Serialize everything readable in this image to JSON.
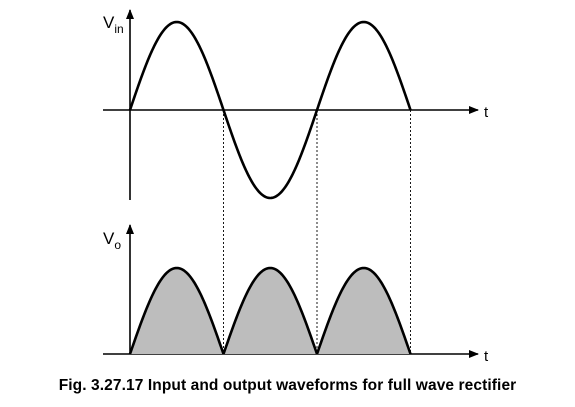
{
  "input_plot": {
    "y_label_main": "V",
    "y_label_sub": "in",
    "x_label": "t",
    "waveform": "sine",
    "cycles": 1.5
  },
  "output_plot": {
    "y_label_main": "V",
    "y_label_sub": "o",
    "x_label": "t",
    "waveform": "full-wave rectified sine",
    "half_cycles": 3,
    "fill_color": "#bdbdbd"
  },
  "caption": "Fig. 3.27.17 Input and output waveforms for full wave rectifier"
}
